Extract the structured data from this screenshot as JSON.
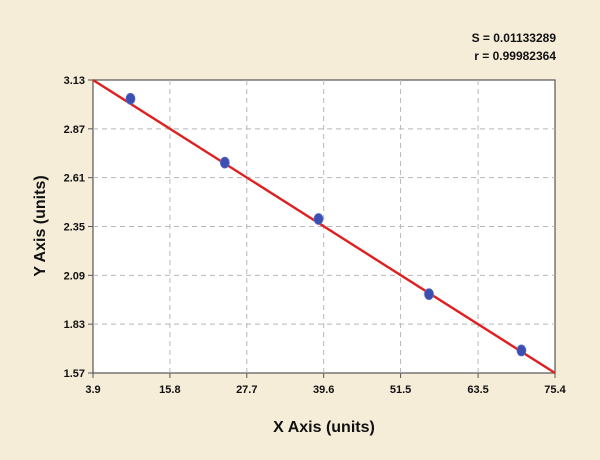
{
  "chart_data": {
    "type": "scatter",
    "title": "",
    "xlabel": "X Axis (units)",
    "ylabel": "Y Axis (units)",
    "xlim": [
      3.9,
      75.4
    ],
    "ylim": [
      1.57,
      3.13
    ],
    "x_ticks": [
      "3.9",
      "15.8",
      "27.7",
      "39.6",
      "51.5",
      "63.5",
      "75.4"
    ],
    "y_ticks": [
      "3.13",
      "2.87",
      "2.61",
      "2.35",
      "2.09",
      "1.83",
      "1.57"
    ],
    "grid": true,
    "legend": "none",
    "annotations": [
      "S = 0.01133289",
      "r = 0.99982364"
    ],
    "series": [
      {
        "type": "scatter",
        "x": [
          9.7,
          24.3,
          38.8,
          55.9,
          70.2
        ],
        "y": [
          3.03,
          2.69,
          2.39,
          1.99,
          1.69
        ]
      }
    ],
    "fit_line": {
      "x": [
        3.9,
        75.4
      ],
      "y": [
        3.13,
        1.57
      ]
    },
    "colors": {
      "background": "#f6edd9",
      "plot_area": "#ffffff",
      "points": "#3a4fb0",
      "fit_line": "#e02020",
      "grid": "#b8b8b8",
      "axis_line": "#555555"
    }
  }
}
